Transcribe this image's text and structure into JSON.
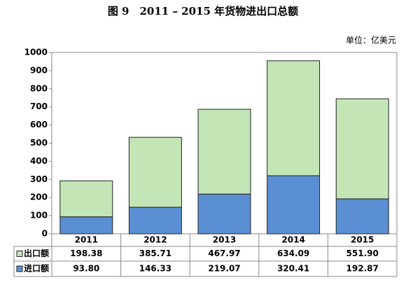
{
  "chart_data": {
    "type": "stacked_bar",
    "title": "图 9　2011 – 2015 年货物进出口总额",
    "unit": "单位：亿美元",
    "categories": [
      "2011",
      "2012",
      "2013",
      "2014",
      "2015"
    ],
    "series": [
      {
        "name": "进口额",
        "color": "#5b8fd3",
        "values": [
          93.8,
          146.33,
          219.07,
          320.41,
          192.87
        ],
        "value_labels": [
          "93.80",
          "146.33",
          "219.07",
          "320.41",
          "192.87"
        ]
      },
      {
        "name": "出口额",
        "color": "#c4e5b6",
        "values": [
          198.38,
          385.71,
          467.97,
          634.09,
          551.9
        ],
        "value_labels": [
          "198.38",
          "385.71",
          "467.97",
          "634.09",
          "551.90"
        ]
      }
    ],
    "ylim": [
      0,
      1000
    ],
    "yticks": [
      0,
      100,
      200,
      300,
      400,
      500,
      600,
      700,
      800,
      900,
      1000
    ],
    "grid": false
  }
}
